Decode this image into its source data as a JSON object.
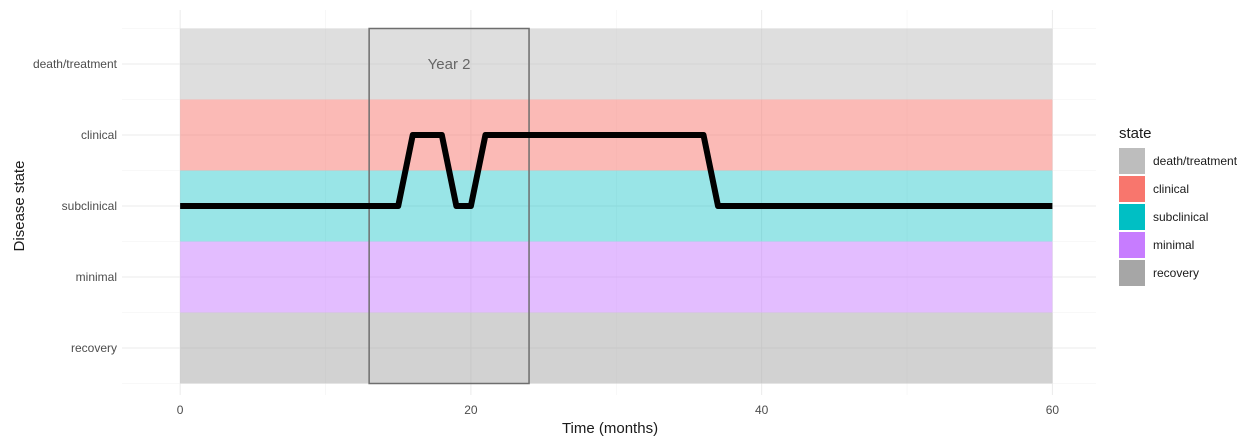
{
  "chart_data": {
    "type": "line",
    "xlabel": "Time (months)",
    "ylabel": "Disease state",
    "xlim": [
      -4,
      63
    ],
    "x_ticks": [
      0,
      20,
      40,
      60
    ],
    "x_tick_labels": [
      "0",
      "20",
      "40",
      "60"
    ],
    "x_minor_ticks": [
      10,
      30,
      50
    ],
    "categories": [
      "recovery",
      "minimal",
      "subclinical",
      "clinical",
      "death/treatment"
    ],
    "bands": [
      {
        "state": "recovery",
        "color": "#a6a6a6",
        "opacity": 0.5
      },
      {
        "state": "minimal",
        "color": "#c77cff",
        "opacity": 0.5
      },
      {
        "state": "subclinical",
        "color": "#00bfc4",
        "opacity": 0.4
      },
      {
        "state": "clinical",
        "color": "#f8766d",
        "opacity": 0.5
      },
      {
        "state": "death/treatment",
        "color": "#bdbdbd",
        "opacity": 0.5
      }
    ],
    "series": [
      {
        "x": [
          0,
          15,
          16,
          18,
          19,
          20,
          21,
          36,
          37,
          60
        ],
        "y": [
          "subclinical",
          "subclinical",
          "clinical",
          "clinical",
          "subclinical",
          "subclinical",
          "clinical",
          "clinical",
          "subclinical",
          "subclinical"
        ]
      }
    ],
    "annotations": [
      {
        "type": "rect",
        "x_range": [
          13,
          24
        ],
        "label": "Year 2"
      }
    ],
    "legend": {
      "title": "state",
      "placement": "right",
      "items": [
        {
          "label": "death/treatment",
          "color": "#bdbdbd"
        },
        {
          "label": "clinical",
          "color": "#f8766d"
        },
        {
          "label": "subclinical",
          "color": "#00bfc4"
        },
        {
          "label": "minimal",
          "color": "#c77cff"
        },
        {
          "label": "recovery",
          "color": "#a6a6a6"
        }
      ]
    },
    "grid": true,
    "line_color": "#000000"
  }
}
